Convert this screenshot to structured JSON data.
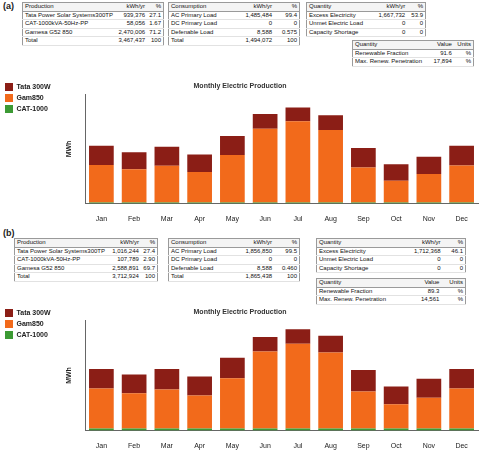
{
  "chart_data": [
    {
      "type": "bar",
      "title": "Monthly Electric Production",
      "ylabel": "MWh",
      "categories": [
        "Jan",
        "Feb",
        "Mar",
        "Apr",
        "May",
        "Jun",
        "Jul",
        "Aug",
        "Sep",
        "Oct",
        "Nov",
        "Dec"
      ],
      "series": [
        {
          "name": "Tata 300W",
          "color": "#8b1e16",
          "values": [
            88,
            78,
            87,
            80,
            87,
            67,
            63,
            68,
            90,
            75,
            80,
            90
          ]
        },
        {
          "name": "Gam850",
          "color": "#f26a1b",
          "values": [
            172,
            152,
            168,
            140,
            218,
            338,
            372,
            332,
            160,
            100,
            130,
            170
          ]
        },
        {
          "name": "CAT-1000",
          "color": "#3c9a34",
          "values": [
            5,
            5,
            5,
            5,
            5,
            5,
            5,
            5,
            5,
            5,
            5,
            5
          ]
        }
      ],
      "stacked": true,
      "ylim": [
        0,
        500
      ],
      "grid": false,
      "legend": "upper left",
      "tick_labels": "x"
    },
    {
      "type": "bar",
      "title": "Monthly Electric Production",
      "ylabel": "MWh",
      "categories": [
        "Jan",
        "Feb",
        "Mar",
        "Apr",
        "May",
        "Jun",
        "Jul",
        "Aug",
        "Sep",
        "Oct",
        "Nov",
        "Dec"
      ],
      "series": [
        {
          "name": "Tata 300W",
          "color": "#8b1e16",
          "values": [
            89,
            86,
            93,
            86,
            93,
            66,
            66,
            76,
            98,
            81,
            86,
            89
          ]
        },
        {
          "name": "Gam850",
          "color": "#f26a1b",
          "values": [
            182,
            160,
            178,
            150,
            228,
            350,
            385,
            345,
            168,
            110,
            140,
            182
          ]
        },
        {
          "name": "CAT-1000",
          "color": "#3c9a34",
          "values": [
            9,
            9,
            9,
            9,
            9,
            9,
            9,
            9,
            9,
            9,
            9,
            9
          ]
        }
      ],
      "stacked": true,
      "ylim": [
        0,
        500
      ],
      "grid": false,
      "legend": "upper left",
      "tick_labels": "x"
    }
  ],
  "panels": [
    {
      "label": "(a)",
      "tables": [
        {
          "header": [
            "Production",
            "kWh/yr",
            "%"
          ],
          "rows": [
            [
              "Tata Power Solar Systems300TP",
              "939,376",
              "27.1"
            ],
            [
              "CAT-1000kVA-50Hz-PP",
              "58,056",
              "1.67"
            ],
            [
              "Gamesa G52 850",
              "2,470,006",
              "71.2"
            ],
            [
              "Total",
              "3,467,437",
              "100"
            ]
          ]
        },
        {
          "header": [
            "Consumption",
            "kWh/yr",
            "%"
          ],
          "rows": [
            [
              "AC Primary Load",
              "1,485,484",
              "99.4"
            ],
            [
              "DC Primary Load",
              "0",
              "0"
            ],
            [
              "Defenable Load",
              "8,588",
              "0.575"
            ],
            [
              "Total",
              "1,494,072",
              "100"
            ]
          ]
        },
        {
          "header": [
            "Quantity",
            "kWh/yr",
            "%"
          ],
          "rows": [
            [
              "Excess Electricity",
              "1,667,732",
              "53.9"
            ],
            [
              "Unmet Electric Load",
              "0",
              "0"
            ],
            [
              "Capacity Shortage",
              "0",
              "0"
            ]
          ]
        },
        {
          "header": [
            "Quantity",
            "Value",
            "Units"
          ],
          "rows": [
            [
              "Renewable Fraction",
              "91.6",
              "%"
            ],
            [
              "Max. Renew. Penetration",
              "17,894",
              "%"
            ]
          ]
        }
      ]
    },
    {
      "label": "(b)",
      "tables": [
        {
          "header": [
            "Production",
            "kWh/yr",
            "%"
          ],
          "rows": [
            [
              "Tata Power Solar Systems300TP",
              "1,016,244",
              "27.4"
            ],
            [
              "CAT-1000kVA-50Hz-PP",
              "107,789",
              "2.90"
            ],
            [
              "Gamesa G52 850",
              "2,588,891",
              "69.7"
            ],
            [
              "Total",
              "3,712,924",
              "100"
            ]
          ]
        },
        {
          "header": [
            "Consumption",
            "kWh/yr",
            "%"
          ],
          "rows": [
            [
              "AC Primary Load",
              "1,856,850",
              "99.5"
            ],
            [
              "DC Primary Load",
              "0",
              "0"
            ],
            [
              "Defenable Load",
              "8,588",
              "0.460"
            ],
            [
              "Total",
              "1,865,438",
              "100"
            ]
          ]
        },
        {
          "header": [
            "Quantity",
            "kWh/yr",
            "%"
          ],
          "rows": [
            [
              "Excess Electricity",
              "1,712,368",
              "46.1"
            ],
            [
              "Unmet Electric Load",
              "0",
              "0"
            ],
            [
              "Capacity Shortage",
              "0",
              "0"
            ]
          ]
        },
        {
          "header": [
            "Quantity",
            "Value",
            "Units"
          ],
          "rows": [
            [
              "Renewable Fraction",
              "89.3",
              "%"
            ],
            [
              "Max. Renew. Penetration",
              "14,561",
              "%"
            ]
          ]
        }
      ]
    }
  ]
}
